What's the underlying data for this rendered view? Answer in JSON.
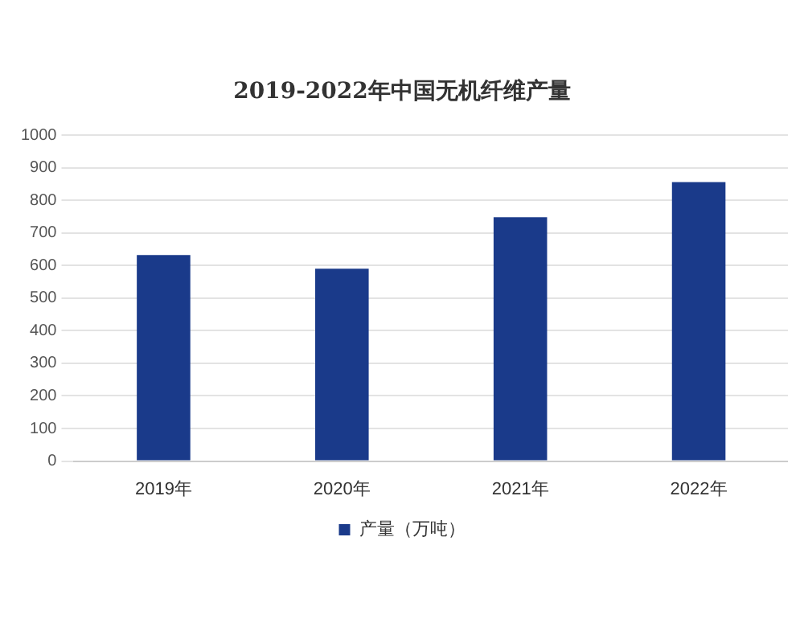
{
  "chart_data": {
    "type": "bar",
    "title": "2019-2022年中国无机纤维产量",
    "categories": [
      "2019年",
      "2020年",
      "2021年",
      "2022年"
    ],
    "series": [
      {
        "name": "产量（万吨）",
        "color": "#1a3a8a",
        "values": [
          632,
          590,
          748,
          856
        ]
      }
    ],
    "ylim": [
      0,
      1000
    ],
    "yticks": [
      0,
      100,
      200,
      300,
      400,
      500,
      600,
      700,
      800,
      900,
      1000
    ],
    "grid": "y",
    "legend": "bottom"
  }
}
